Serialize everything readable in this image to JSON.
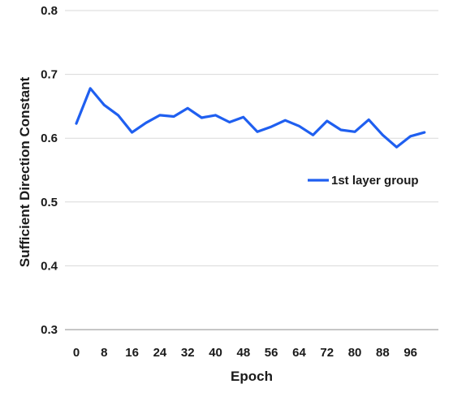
{
  "chart_data": {
    "type": "line",
    "xlabel": "Epoch",
    "ylabel": "Sufficient Direction Constant",
    "ylim": [
      0.3,
      0.8
    ],
    "y_ticks": [
      "0.3",
      "0.4",
      "0.5",
      "0.6",
      "0.7",
      "0.8"
    ],
    "x_ticks": [
      "0",
      "8",
      "16",
      "24",
      "32",
      "40",
      "48",
      "56",
      "64",
      "72",
      "80",
      "88",
      "96"
    ],
    "grid": "horizontal",
    "legend_position": "right",
    "series": [
      {
        "name": "1st layer group",
        "color": "#1f5ff0",
        "x": [
          0,
          4,
          8,
          12,
          16,
          20,
          24,
          28,
          32,
          36,
          40,
          44,
          48,
          52,
          56,
          60,
          64,
          68,
          72,
          76,
          80,
          84,
          88,
          92,
          96,
          100
        ],
        "values": [
          0.623,
          0.678,
          0.652,
          0.636,
          0.609,
          0.624,
          0.636,
          0.634,
          0.647,
          0.632,
          0.636,
          0.625,
          0.633,
          0.61,
          0.618,
          0.628,
          0.619,
          0.605,
          0.627,
          0.613,
          0.61,
          0.629,
          0.605,
          0.586,
          0.603,
          0.609
        ]
      }
    ]
  }
}
